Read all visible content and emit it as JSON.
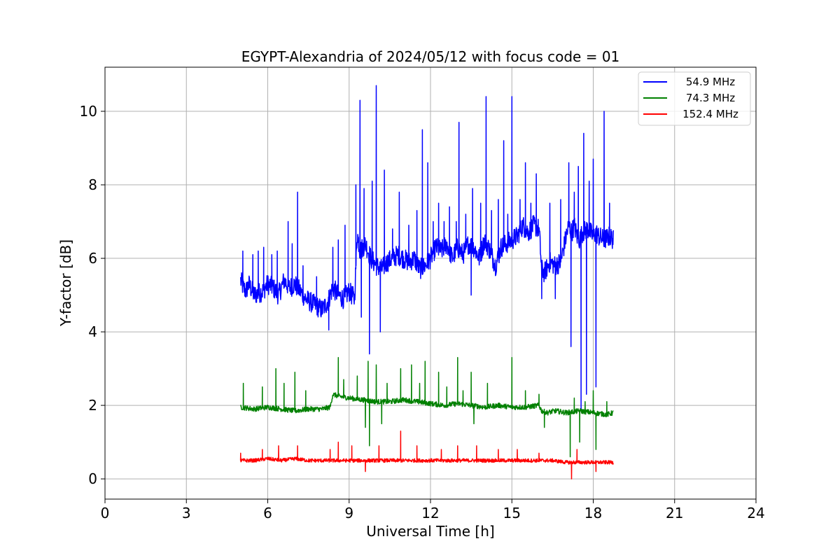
{
  "chart_data": {
    "type": "line",
    "title": "EGYPT-Alexandria of 2024/05/12 with focus code = 01",
    "xlabel": "Universal Time [h]",
    "ylabel": "Y-factor [dB]",
    "xlim": [
      0,
      24
    ],
    "ylim": [
      -0.55,
      11.2
    ],
    "xticks": [
      0,
      3,
      6,
      9,
      12,
      15,
      18,
      21,
      24
    ],
    "yticks": [
      0,
      2,
      4,
      6,
      8,
      10
    ],
    "grid": true,
    "legend_position": "top-right",
    "series": [
      {
        "name": "54.9 MHz",
        "color": "#0000ff",
        "x": [
          5.0,
          5.1,
          5.2,
          5.3,
          5.5,
          5.8,
          6.0,
          6.2,
          6.4,
          6.6,
          6.8,
          7.0,
          7.2,
          7.4,
          7.6,
          7.8,
          8.0,
          8.2,
          8.4,
          8.6,
          8.8,
          9.0,
          9.2,
          9.3,
          9.4,
          9.6,
          9.8,
          10.0,
          10.2,
          10.4,
          10.6,
          10.8,
          11.0,
          11.2,
          11.4,
          11.6,
          11.8,
          12.0,
          12.2,
          12.4,
          12.6,
          12.8,
          13.0,
          13.2,
          13.4,
          13.6,
          13.8,
          14.0,
          14.2,
          14.4,
          14.6,
          14.8,
          15.0,
          15.2,
          15.4,
          15.6,
          15.8,
          16.0,
          16.1,
          16.2,
          16.4,
          16.6,
          16.8,
          17.0,
          17.1,
          17.2,
          17.3,
          17.4,
          17.5,
          17.6,
          17.8,
          18.0,
          18.1,
          18.2,
          18.4,
          18.6,
          18.75
        ],
        "y": [
          5.4,
          5.2,
          5.1,
          5.3,
          5.0,
          5.1,
          5.3,
          5.2,
          5.0,
          5.4,
          5.2,
          5.3,
          5.1,
          4.9,
          4.8,
          4.7,
          4.6,
          4.8,
          5.2,
          5.0,
          4.9,
          5.1,
          4.9,
          6.7,
          6.2,
          6.4,
          6.0,
          5.8,
          5.7,
          5.9,
          6.0,
          6.1,
          6.0,
          5.9,
          6.0,
          5.7,
          5.8,
          6.0,
          6.3,
          6.2,
          6.4,
          6.0,
          6.3,
          6.1,
          6.4,
          6.3,
          6.0,
          6.5,
          6.2,
          5.8,
          6.3,
          6.4,
          6.5,
          6.6,
          6.9,
          6.7,
          6.9,
          6.8,
          5.7,
          5.6,
          5.9,
          5.8,
          5.9,
          6.6,
          6.9,
          6.7,
          6.9,
          6.6,
          6.5,
          6.7,
          6.8,
          6.6,
          6.7,
          6.6,
          6.5,
          6.6,
          6.5
        ]
      },
      {
        "name": "74.3 MHz",
        "color": "#008000",
        "x": [
          5.0,
          5.5,
          6.0,
          6.5,
          7.0,
          7.5,
          8.0,
          8.3,
          8.4,
          8.6,
          9.0,
          9.5,
          10.0,
          10.5,
          11.0,
          11.5,
          12.0,
          12.5,
          13.0,
          13.5,
          14.0,
          14.5,
          15.0,
          15.5,
          16.0,
          16.1,
          16.3,
          16.6,
          17.0,
          17.5,
          18.0,
          18.5,
          18.75
        ],
        "y": [
          1.95,
          1.9,
          1.95,
          1.9,
          1.85,
          1.9,
          1.9,
          1.95,
          2.3,
          2.25,
          2.2,
          2.15,
          2.1,
          2.1,
          2.15,
          2.1,
          2.05,
          2.0,
          2.05,
          2.0,
          1.95,
          2.0,
          1.95,
          1.95,
          2.0,
          1.85,
          1.8,
          1.85,
          1.8,
          1.85,
          1.8,
          1.75,
          1.8
        ]
      },
      {
        "name": "152.4 MHz",
        "color": "#ff0000",
        "x": [
          5.0,
          5.5,
          6.0,
          6.5,
          7.0,
          7.5,
          8.0,
          8.5,
          9.0,
          9.5,
          10.0,
          10.5,
          11.0,
          11.5,
          12.0,
          12.5,
          13.0,
          13.5,
          14.0,
          14.5,
          15.0,
          15.5,
          16.0,
          16.5,
          17.0,
          17.5,
          18.0,
          18.5,
          18.75
        ],
        "y": [
          0.5,
          0.5,
          0.55,
          0.5,
          0.55,
          0.5,
          0.5,
          0.5,
          0.5,
          0.5,
          0.5,
          0.5,
          0.5,
          0.5,
          0.5,
          0.5,
          0.5,
          0.5,
          0.5,
          0.5,
          0.5,
          0.5,
          0.5,
          0.5,
          0.45,
          0.45,
          0.45,
          0.45,
          0.45
        ]
      }
    ],
    "spikes": [
      {
        "series": 0,
        "x": 5.08,
        "y": 6.2
      },
      {
        "series": 0,
        "x": 5.45,
        "y": 6.1
      },
      {
        "series": 0,
        "x": 5.65,
        "y": 6.2
      },
      {
        "series": 0,
        "x": 5.85,
        "y": 6.3
      },
      {
        "series": 0,
        "x": 6.15,
        "y": 6.1
      },
      {
        "series": 0,
        "x": 6.35,
        "y": 6.2
      },
      {
        "series": 0,
        "x": 6.75,
        "y": 7.0
      },
      {
        "series": 0,
        "x": 6.9,
        "y": 6.4
      },
      {
        "series": 0,
        "x": 7.1,
        "y": 7.8
      },
      {
        "series": 0,
        "x": 7.3,
        "y": 5.8
      },
      {
        "series": 0,
        "x": 7.8,
        "y": 5.5
      },
      {
        "series": 0,
        "x": 8.25,
        "y": 4.05
      },
      {
        "series": 0,
        "x": 8.4,
        "y": 6.3
      },
      {
        "series": 0,
        "x": 8.6,
        "y": 6.5
      },
      {
        "series": 0,
        "x": 8.85,
        "y": 6.9
      },
      {
        "series": 0,
        "x": 9.25,
        "y": 8.0
      },
      {
        "series": 0,
        "x": 9.4,
        "y": 10.3
      },
      {
        "series": 0,
        "x": 9.45,
        "y": 4.4
      },
      {
        "series": 0,
        "x": 9.55,
        "y": 7.9
      },
      {
        "series": 0,
        "x": 9.75,
        "y": 3.4
      },
      {
        "series": 0,
        "x": 9.85,
        "y": 8.1
      },
      {
        "series": 0,
        "x": 10.0,
        "y": 10.7
      },
      {
        "series": 0,
        "x": 10.15,
        "y": 4.0
      },
      {
        "series": 0,
        "x": 10.3,
        "y": 8.4
      },
      {
        "series": 0,
        "x": 10.6,
        "y": 6.8
      },
      {
        "series": 0,
        "x": 10.85,
        "y": 7.8
      },
      {
        "series": 0,
        "x": 11.2,
        "y": 6.9
      },
      {
        "series": 0,
        "x": 11.5,
        "y": 7.3
      },
      {
        "series": 0,
        "x": 11.7,
        "y": 9.5
      },
      {
        "series": 0,
        "x": 11.9,
        "y": 8.6
      },
      {
        "series": 0,
        "x": 12.1,
        "y": 7.0
      },
      {
        "series": 0,
        "x": 12.3,
        "y": 7.5
      },
      {
        "series": 0,
        "x": 12.5,
        "y": 7.0
      },
      {
        "series": 0,
        "x": 12.7,
        "y": 7.4
      },
      {
        "series": 0,
        "x": 12.95,
        "y": 7.0
      },
      {
        "series": 0,
        "x": 13.05,
        "y": 9.7
      },
      {
        "series": 0,
        "x": 13.3,
        "y": 7.2
      },
      {
        "series": 0,
        "x": 13.5,
        "y": 5.0
      },
      {
        "series": 0,
        "x": 13.55,
        "y": 7.9
      },
      {
        "series": 0,
        "x": 13.85,
        "y": 7.5
      },
      {
        "series": 0,
        "x": 14.05,
        "y": 10.4
      },
      {
        "series": 0,
        "x": 14.25,
        "y": 7.3
      },
      {
        "series": 0,
        "x": 14.5,
        "y": 7.6
      },
      {
        "series": 0,
        "x": 14.7,
        "y": 9.2
      },
      {
        "series": 0,
        "x": 14.85,
        "y": 7.2
      },
      {
        "series": 0,
        "x": 15.0,
        "y": 10.4
      },
      {
        "series": 0,
        "x": 15.3,
        "y": 7.6
      },
      {
        "series": 0,
        "x": 15.5,
        "y": 8.6
      },
      {
        "series": 0,
        "x": 15.7,
        "y": 7.5
      },
      {
        "series": 0,
        "x": 15.9,
        "y": 8.3
      },
      {
        "series": 0,
        "x": 16.1,
        "y": 4.9
      },
      {
        "series": 0,
        "x": 16.4,
        "y": 7.5
      },
      {
        "series": 0,
        "x": 16.6,
        "y": 4.9
      },
      {
        "series": 0,
        "x": 16.8,
        "y": 7.6
      },
      {
        "series": 0,
        "x": 17.1,
        "y": 8.6
      },
      {
        "series": 0,
        "x": 17.18,
        "y": 3.6
      },
      {
        "series": 0,
        "x": 17.3,
        "y": 7.8
      },
      {
        "series": 0,
        "x": 17.45,
        "y": 8.5
      },
      {
        "series": 0,
        "x": 17.55,
        "y": 1.9
      },
      {
        "series": 0,
        "x": 17.65,
        "y": 9.4
      },
      {
        "series": 0,
        "x": 17.75,
        "y": 2.3
      },
      {
        "series": 0,
        "x": 17.85,
        "y": 8.1
      },
      {
        "series": 0,
        "x": 18.0,
        "y": 8.7
      },
      {
        "series": 0,
        "x": 18.1,
        "y": 2.5
      },
      {
        "series": 0,
        "x": 18.4,
        "y": 10.0
      },
      {
        "series": 0,
        "x": 18.6,
        "y": 7.5
      },
      {
        "series": 1,
        "x": 5.1,
        "y": 2.6
      },
      {
        "series": 1,
        "x": 5.8,
        "y": 2.5
      },
      {
        "series": 1,
        "x": 6.3,
        "y": 3.0
      },
      {
        "series": 1,
        "x": 6.6,
        "y": 2.6
      },
      {
        "series": 1,
        "x": 7.0,
        "y": 2.9
      },
      {
        "series": 1,
        "x": 7.4,
        "y": 2.4
      },
      {
        "series": 1,
        "x": 8.6,
        "y": 3.3
      },
      {
        "series": 1,
        "x": 8.8,
        "y": 2.7
      },
      {
        "series": 1,
        "x": 9.3,
        "y": 2.8
      },
      {
        "series": 1,
        "x": 9.6,
        "y": 1.4
      },
      {
        "series": 1,
        "x": 9.7,
        "y": 3.2
      },
      {
        "series": 1,
        "x": 9.75,
        "y": 0.9
      },
      {
        "series": 1,
        "x": 10.0,
        "y": 3.1
      },
      {
        "series": 1,
        "x": 10.2,
        "y": 1.5
      },
      {
        "series": 1,
        "x": 10.4,
        "y": 2.6
      },
      {
        "series": 1,
        "x": 10.9,
        "y": 3.0
      },
      {
        "series": 1,
        "x": 11.3,
        "y": 3.1
      },
      {
        "series": 1,
        "x": 11.6,
        "y": 2.6
      },
      {
        "series": 1,
        "x": 11.8,
        "y": 3.2
      },
      {
        "series": 1,
        "x": 12.3,
        "y": 2.9
      },
      {
        "series": 1,
        "x": 12.6,
        "y": 2.5
      },
      {
        "series": 1,
        "x": 13.0,
        "y": 3.3
      },
      {
        "series": 1,
        "x": 13.2,
        "y": 2.4
      },
      {
        "series": 1,
        "x": 13.5,
        "y": 2.9
      },
      {
        "series": 1,
        "x": 13.6,
        "y": 1.5
      },
      {
        "series": 1,
        "x": 14.1,
        "y": 2.6
      },
      {
        "series": 1,
        "x": 15.0,
        "y": 3.3
      },
      {
        "series": 1,
        "x": 15.5,
        "y": 2.4
      },
      {
        "series": 1,
        "x": 16.0,
        "y": 2.3
      },
      {
        "series": 1,
        "x": 16.2,
        "y": 1.4
      },
      {
        "series": 1,
        "x": 17.15,
        "y": 0.6
      },
      {
        "series": 1,
        "x": 17.3,
        "y": 2.2
      },
      {
        "series": 1,
        "x": 17.5,
        "y": 1.0
      },
      {
        "series": 1,
        "x": 17.7,
        "y": 2.1
      },
      {
        "series": 1,
        "x": 18.0,
        "y": 2.4
      },
      {
        "series": 1,
        "x": 18.1,
        "y": 0.8
      },
      {
        "series": 1,
        "x": 18.5,
        "y": 2.1
      },
      {
        "series": 2,
        "x": 5.0,
        "y": 0.7
      },
      {
        "series": 2,
        "x": 5.8,
        "y": 0.8
      },
      {
        "series": 2,
        "x": 6.4,
        "y": 0.9
      },
      {
        "series": 2,
        "x": 7.1,
        "y": 0.9
      },
      {
        "series": 2,
        "x": 8.3,
        "y": 0.8
      },
      {
        "series": 2,
        "x": 8.6,
        "y": 1.0
      },
      {
        "series": 2,
        "x": 9.1,
        "y": 0.9
      },
      {
        "series": 2,
        "x": 9.6,
        "y": 0.2
      },
      {
        "series": 2,
        "x": 10.1,
        "y": 0.9
      },
      {
        "series": 2,
        "x": 10.9,
        "y": 1.3
      },
      {
        "series": 2,
        "x": 11.5,
        "y": 0.9
      },
      {
        "series": 2,
        "x": 12.4,
        "y": 0.8
      },
      {
        "series": 2,
        "x": 13.0,
        "y": 0.9
      },
      {
        "series": 2,
        "x": 13.7,
        "y": 0.9
      },
      {
        "series": 2,
        "x": 14.5,
        "y": 0.8
      },
      {
        "series": 2,
        "x": 15.2,
        "y": 0.8
      },
      {
        "series": 2,
        "x": 16.0,
        "y": 0.7
      },
      {
        "series": 2,
        "x": 17.2,
        "y": 0.0
      },
      {
        "series": 2,
        "x": 17.4,
        "y": 0.8
      },
      {
        "series": 2,
        "x": 18.1,
        "y": 0.2
      }
    ]
  }
}
